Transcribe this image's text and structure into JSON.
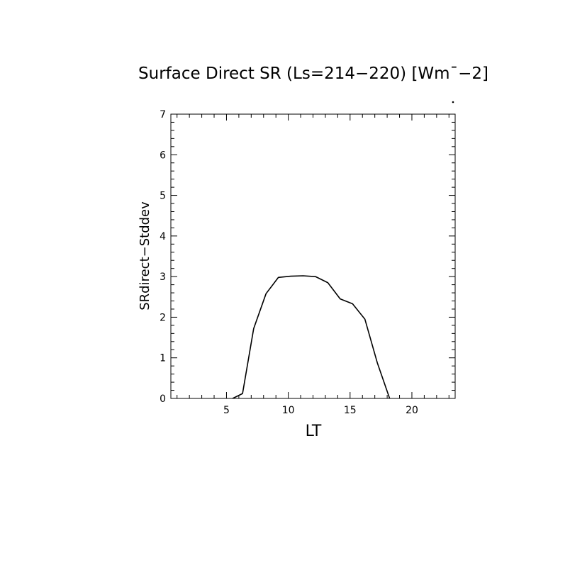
{
  "chart_data": {
    "type": "line",
    "title": "Surface Direct SR (Ls=214−220) [Wm¯−2]",
    "xlabel": "LT",
    "ylabel": "SRdirect−Stddev",
    "xlim": [
      0.5,
      23.5
    ],
    "ylim": [
      0,
      7
    ],
    "x_ticks": [
      5,
      10,
      15,
      20
    ],
    "x_tick_labels": [
      "5",
      "10",
      "15",
      "20"
    ],
    "y_ticks": [
      0,
      1,
      2,
      3,
      4,
      5,
      6,
      7
    ],
    "y_tick_labels": [
      "0",
      "1",
      "2",
      "3",
      "4",
      "5",
      "6",
      "7"
    ],
    "grid": false,
    "series": [
      {
        "color": "#000000",
        "x": [
          5.5,
          6.3,
          7.2,
          8.2,
          9.2,
          10.2,
          11.2,
          12.2,
          13.2,
          14.2,
          15.2,
          16.2,
          17.2,
          18.2
        ],
        "y": [
          0.0,
          0.12,
          1.72,
          2.58,
          2.98,
          3.01,
          3.02,
          3.0,
          2.85,
          2.45,
          2.33,
          1.95,
          0.88,
          0.0
        ]
      }
    ]
  }
}
